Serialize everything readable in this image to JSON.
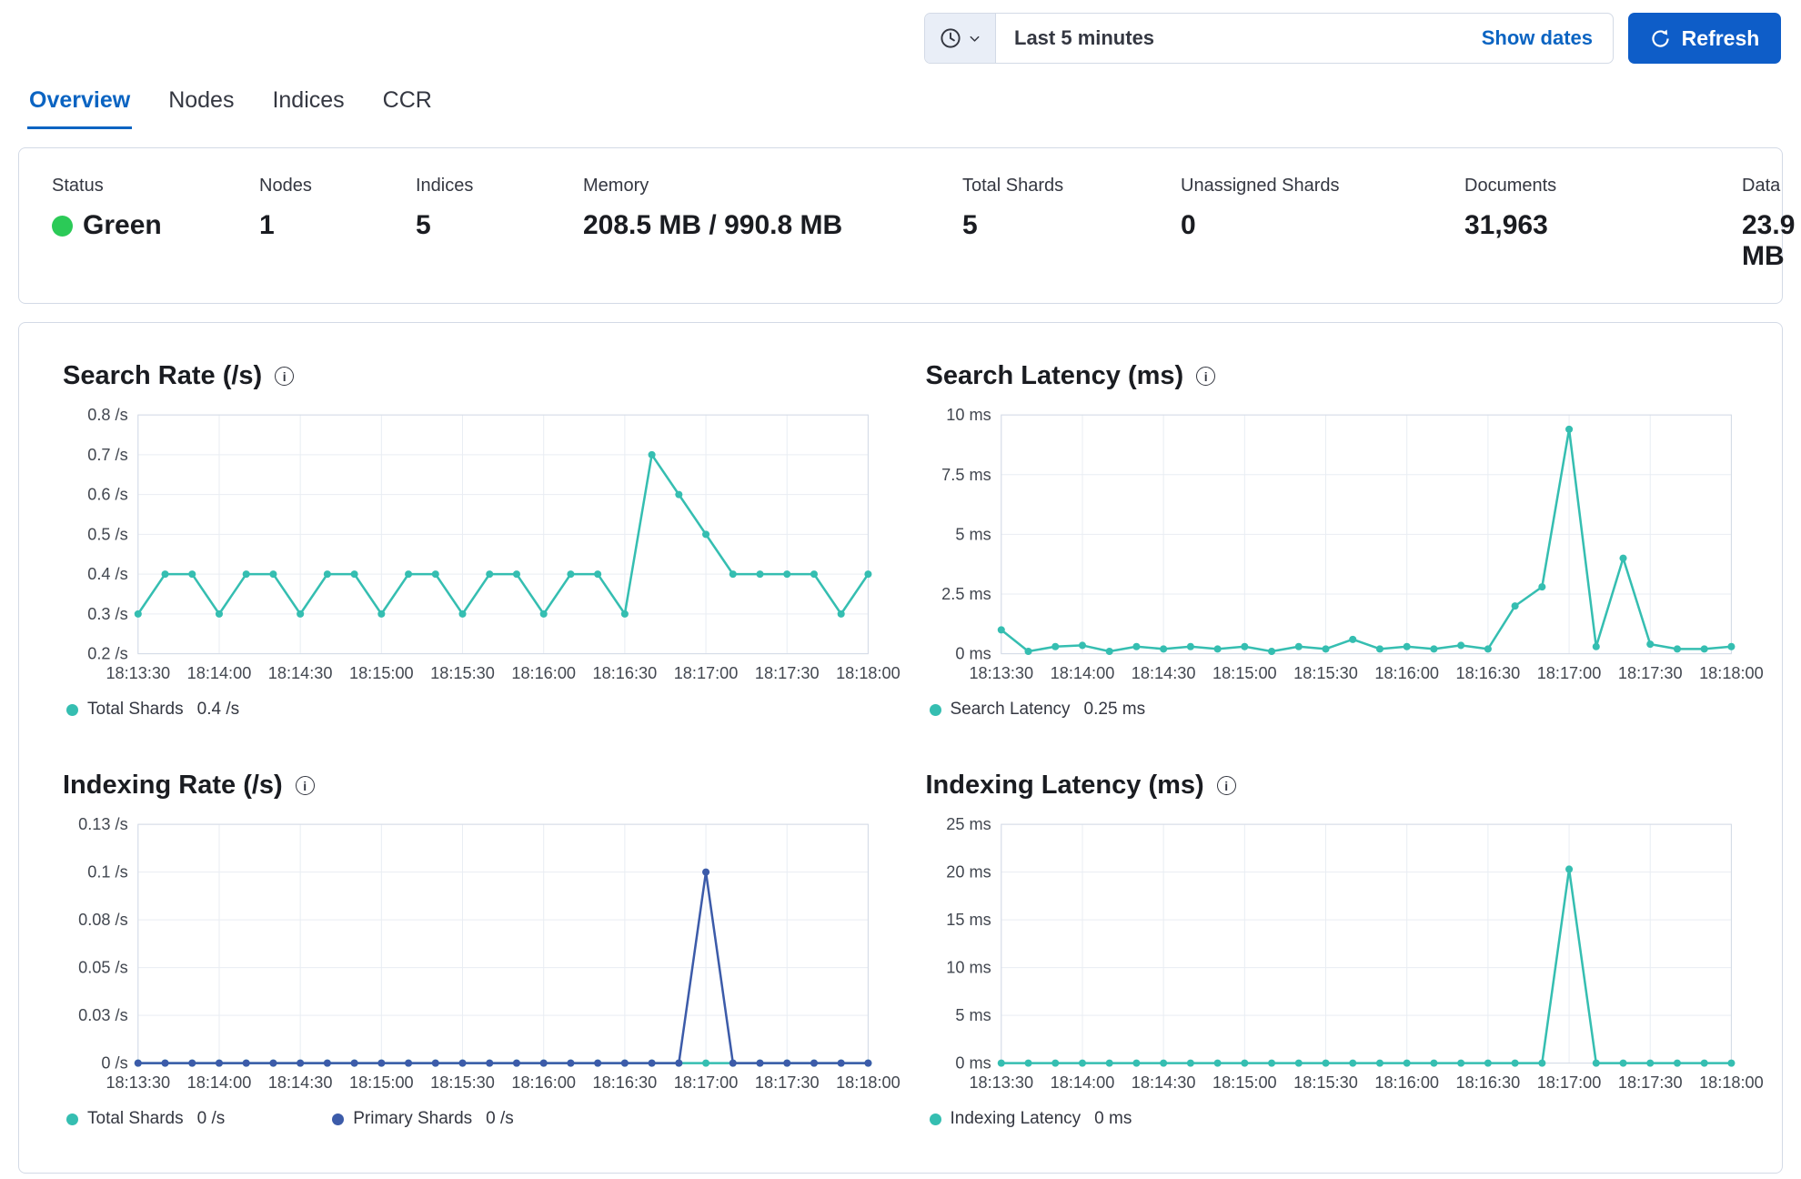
{
  "topbar": {
    "time_range": "Last 5 minutes",
    "show_dates_label": "Show dates",
    "refresh_label": "Refresh"
  },
  "icons": {
    "quick_select": "clock-icon",
    "quick_select_arrow": "chevron-down-icon",
    "refresh": "refresh-icon",
    "chart_info": "info-icon"
  },
  "colors": {
    "accent_blue": "#0e5dc8",
    "link_blue": "#0b64c2",
    "health_green": "#2bca57",
    "line_teal": "#35beb1",
    "line_blue": "#3c5ba9",
    "panel_border": "#d3dae6"
  },
  "tabs": [
    {
      "label": "Overview",
      "active": true
    },
    {
      "label": "Nodes",
      "active": false
    },
    {
      "label": "Indices",
      "active": false
    },
    {
      "label": "CCR",
      "active": false
    }
  ],
  "status": {
    "items": [
      {
        "label": "Status",
        "value": "Green"
      },
      {
        "label": "Nodes",
        "value": "1"
      },
      {
        "label": "Indices",
        "value": "5"
      },
      {
        "label": "Memory",
        "value": "208.5 MB / 990.8 MB"
      },
      {
        "label": "Total Shards",
        "value": "5"
      },
      {
        "label": "Unassigned Shards",
        "value": "0"
      },
      {
        "label": "Documents",
        "value": "31,963"
      },
      {
        "label": "Data",
        "value": "23.9 MB"
      }
    ]
  },
  "chart_data": [
    {
      "type": "line",
      "title": "Search Rate (/s)",
      "x_ticks": [
        "18:13:30",
        "18:14:00",
        "18:14:30",
        "18:15:00",
        "18:15:30",
        "18:16:00",
        "18:16:30",
        "18:17:00",
        "18:17:30",
        "18:18:00"
      ],
      "y_ticks": [
        {
          "label": "0.2 /s",
          "value": 0.2
        },
        {
          "label": "0.3 /s",
          "value": 0.3
        },
        {
          "label": "0.4 /s",
          "value": 0.4
        },
        {
          "label": "0.5 /s",
          "value": 0.5
        },
        {
          "label": "0.6 /s",
          "value": 0.6
        },
        {
          "label": "0.7 /s",
          "value": 0.7
        },
        {
          "label": "0.8 /s",
          "value": 0.8
        }
      ],
      "ylim": [
        0.2,
        0.8
      ],
      "grid": true,
      "legend_position": "bottom",
      "series": [
        {
          "name": "Total Shards",
          "current": "0.4 /s",
          "color": "#35beb1",
          "values": [
            0.3,
            0.4,
            0.4,
            0.3,
            0.4,
            0.4,
            0.3,
            0.4,
            0.4,
            0.3,
            0.4,
            0.4,
            0.3,
            0.4,
            0.4,
            0.3,
            0.4,
            0.4,
            0.3,
            0.7,
            0.6,
            0.5,
            0.4,
            0.4,
            0.4,
            0.4,
            0.3,
            0.4
          ]
        }
      ]
    },
    {
      "type": "line",
      "title": "Search Latency (ms)",
      "x_ticks": [
        "18:13:30",
        "18:14:00",
        "18:14:30",
        "18:15:00",
        "18:15:30",
        "18:16:00",
        "18:16:30",
        "18:17:00",
        "18:17:30",
        "18:18:00"
      ],
      "y_ticks": [
        {
          "label": "0 ms",
          "value": 0
        },
        {
          "label": "2.5 ms",
          "value": 2.5
        },
        {
          "label": "5 ms",
          "value": 5
        },
        {
          "label": "7.5 ms",
          "value": 7.5
        },
        {
          "label": "10 ms",
          "value": 10
        }
      ],
      "ylim": [
        0,
        10
      ],
      "grid": true,
      "legend_position": "bottom",
      "series": [
        {
          "name": "Search Latency",
          "current": "0.25 ms",
          "color": "#35beb1",
          "values": [
            1.0,
            0.1,
            0.3,
            0.35,
            0.1,
            0.3,
            0.2,
            0.3,
            0.2,
            0.3,
            0.1,
            0.3,
            0.2,
            0.6,
            0.2,
            0.3,
            0.2,
            0.35,
            0.2,
            2.0,
            2.8,
            9.4,
            0.3,
            4.0,
            0.4,
            0.2,
            0.2,
            0.3
          ]
        }
      ]
    },
    {
      "type": "line",
      "title": "Indexing Rate (/s)",
      "x_ticks": [
        "18:13:30",
        "18:14:00",
        "18:14:30",
        "18:15:00",
        "18:15:30",
        "18:16:00",
        "18:16:30",
        "18:17:00",
        "18:17:30",
        "18:18:00"
      ],
      "y_ticks": [
        {
          "label": "0 /s",
          "value": 0
        },
        {
          "label": "0.03 /s",
          "value": 0.025
        },
        {
          "label": "0.05 /s",
          "value": 0.05
        },
        {
          "label": "0.08 /s",
          "value": 0.075
        },
        {
          "label": "0.1 /s",
          "value": 0.1
        },
        {
          "label": "0.13 /s",
          "value": 0.125
        }
      ],
      "ylim": [
        0,
        0.125
      ],
      "grid": true,
      "legend_position": "bottom",
      "series": [
        {
          "name": "Total Shards",
          "current": "0 /s",
          "color": "#35beb1",
          "values": [
            0,
            0,
            0,
            0,
            0,
            0,
            0,
            0,
            0,
            0,
            0,
            0,
            0,
            0,
            0,
            0,
            0,
            0,
            0,
            0,
            0,
            0,
            0,
            0,
            0,
            0,
            0,
            0
          ]
        },
        {
          "name": "Primary Shards",
          "current": "0 /s",
          "color": "#3c5ba9",
          "values": [
            0,
            0,
            0,
            0,
            0,
            0,
            0,
            0,
            0,
            0,
            0,
            0,
            0,
            0,
            0,
            0,
            0,
            0,
            0,
            0,
            0,
            0.1,
            0,
            0,
            0,
            0,
            0,
            0
          ]
        }
      ]
    },
    {
      "type": "line",
      "title": "Indexing Latency (ms)",
      "x_ticks": [
        "18:13:30",
        "18:14:00",
        "18:14:30",
        "18:15:00",
        "18:15:30",
        "18:16:00",
        "18:16:30",
        "18:17:00",
        "18:17:30",
        "18:18:00"
      ],
      "y_ticks": [
        {
          "label": "0 ms",
          "value": 0
        },
        {
          "label": "5 ms",
          "value": 5
        },
        {
          "label": "10 ms",
          "value": 10
        },
        {
          "label": "15 ms",
          "value": 15
        },
        {
          "label": "20 ms",
          "value": 20
        },
        {
          "label": "25 ms",
          "value": 25
        }
      ],
      "ylim": [
        0,
        25
      ],
      "grid": true,
      "legend_position": "bottom",
      "series": [
        {
          "name": "Indexing Latency",
          "current": "0 ms",
          "color": "#35beb1",
          "values": [
            0,
            0,
            0,
            0,
            0,
            0,
            0,
            0,
            0,
            0,
            0,
            0,
            0,
            0,
            0,
            0,
            0,
            0,
            0,
            0,
            0,
            20.3,
            0,
            0,
            0,
            0,
            0,
            0
          ]
        }
      ]
    }
  ]
}
